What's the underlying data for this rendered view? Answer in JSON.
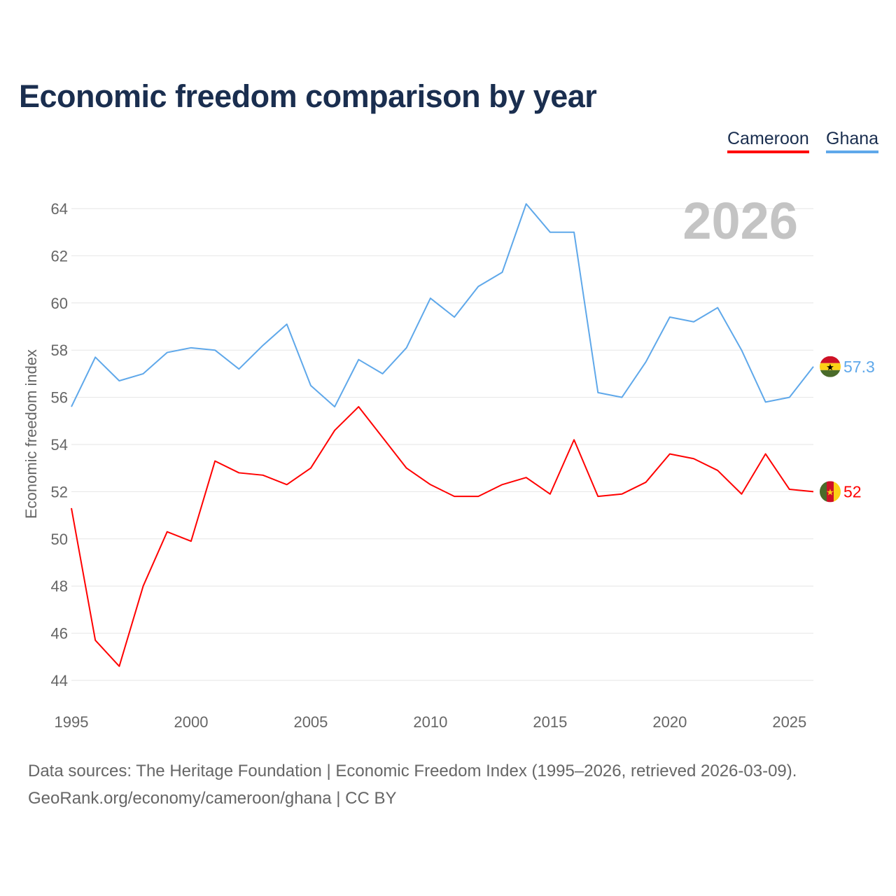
{
  "chart_data": {
    "type": "line",
    "title": "Economic freedom comparison by year",
    "ylabel": "Economic freedom index",
    "xlabel": "",
    "ylim": [
      44,
      64
    ],
    "xlim": [
      1995,
      2026
    ],
    "yticks": [
      "44",
      "46",
      "48",
      "50",
      "52",
      "54",
      "56",
      "58",
      "60",
      "62",
      "64"
    ],
    "xticks": [
      "1995",
      "2000",
      "2005",
      "2010",
      "2015",
      "2020",
      "2025"
    ],
    "grid": true,
    "legend_position": "top-right",
    "watermark_year": "2026",
    "x": [
      1995,
      1996,
      1997,
      1998,
      1999,
      2000,
      2001,
      2002,
      2003,
      2004,
      2005,
      2006,
      2007,
      2008,
      2009,
      2010,
      2011,
      2012,
      2013,
      2014,
      2015,
      2016,
      2017,
      2018,
      2019,
      2020,
      2021,
      2022,
      2023,
      2024,
      2025,
      2026
    ],
    "series": [
      {
        "name": "Cameroon",
        "color": "#ff0000",
        "end_label": "52",
        "values": [
          51.3,
          45.7,
          44.6,
          48.0,
          50.3,
          49.9,
          53.3,
          52.8,
          52.7,
          52.3,
          53.0,
          54.6,
          55.6,
          54.3,
          53.0,
          52.3,
          51.8,
          51.8,
          52.3,
          52.6,
          51.9,
          54.2,
          51.8,
          51.9,
          52.4,
          53.6,
          53.4,
          52.9,
          51.9,
          53.6,
          52.1,
          52.0
        ]
      },
      {
        "name": "Ghana",
        "color": "#5fa8ea",
        "end_label": "57.3",
        "values": [
          55.6,
          57.7,
          56.7,
          57.0,
          57.9,
          58.1,
          58.0,
          57.2,
          58.2,
          59.1,
          56.5,
          55.6,
          57.6,
          57.0,
          58.1,
          60.2,
          59.4,
          60.7,
          61.3,
          64.2,
          63.0,
          63.0,
          56.2,
          56.0,
          57.5,
          59.4,
          59.2,
          59.8,
          58.0,
          55.8,
          56.0,
          57.3
        ]
      }
    ]
  },
  "footer": {
    "line1": "Data sources: The Heritage Foundation | Economic Freedom Index (1995–2026, retrieved 2026-03-09).",
    "line2": "GeoRank.org/economy/cameroon/ghana | CC BY"
  }
}
